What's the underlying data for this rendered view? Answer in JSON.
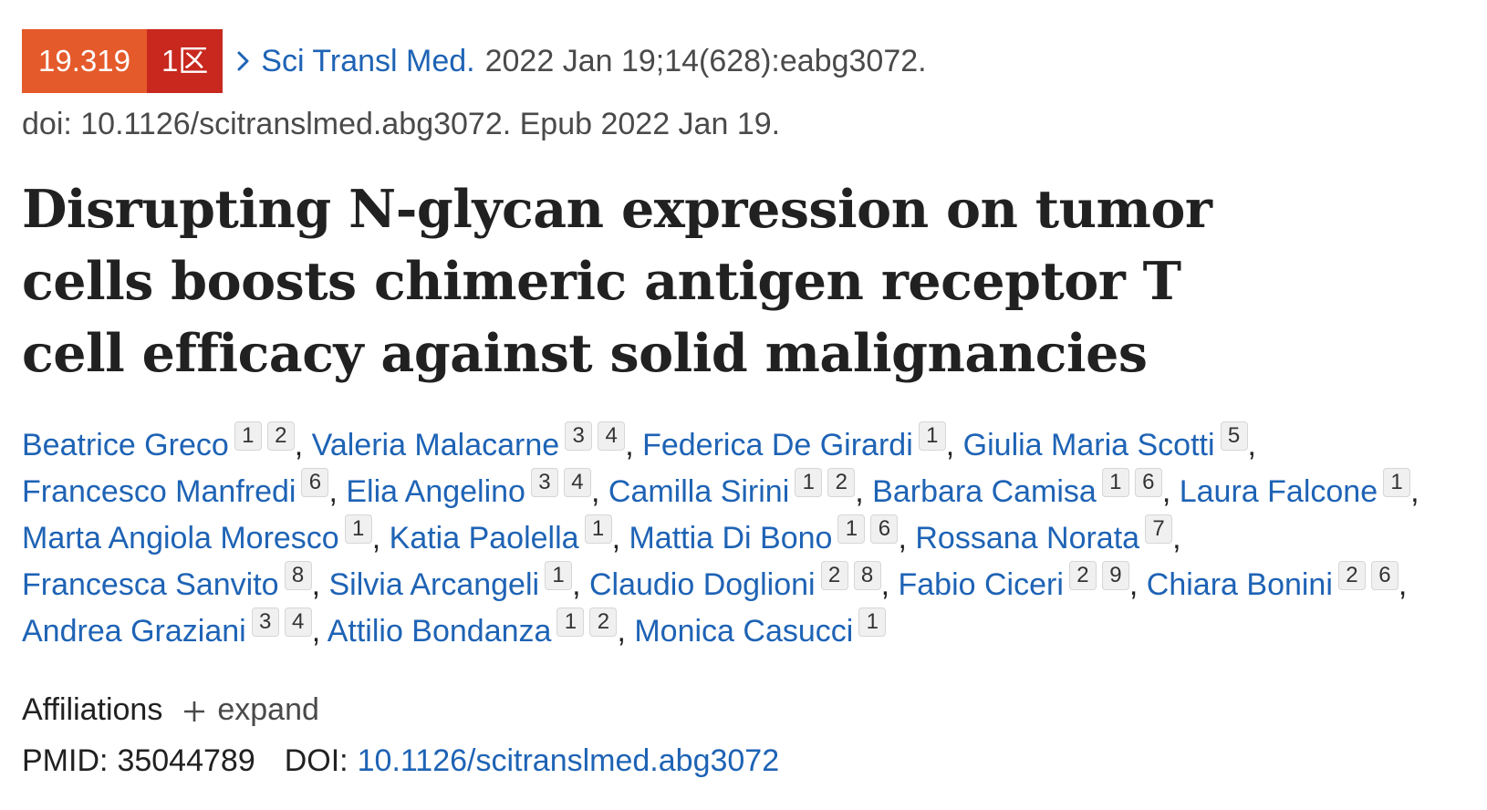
{
  "citation": {
    "impact_factor": "19.319",
    "zone": "1区",
    "journal": "Sci Transl Med.",
    "details": "2022 Jan 19;14(628):eabg3072.",
    "doi_line": "doi: 10.1126/scitranslmed.abg3072. Epub 2022 Jan 19.",
    "colors": {
      "impact_factor_bg": "#e55a2b",
      "zone_bg": "#c8281e",
      "link": "#1e63b5"
    }
  },
  "title": "Disrupting N-glycan expression on tumor cells boosts chimeric antigen receptor T cell efficacy against solid malignancies",
  "authors": [
    {
      "name": "Beatrice Greco",
      "affs": [
        "1",
        "2"
      ]
    },
    {
      "name": "Valeria Malacarne",
      "affs": [
        "3",
        "4"
      ]
    },
    {
      "name": "Federica De Girardi",
      "affs": [
        "1"
      ]
    },
    {
      "name": "Giulia Maria Scotti",
      "affs": [
        "5"
      ]
    },
    {
      "name": "Francesco Manfredi",
      "affs": [
        "6"
      ]
    },
    {
      "name": "Elia Angelino",
      "affs": [
        "3",
        "4"
      ]
    },
    {
      "name": "Camilla Sirini",
      "affs": [
        "1",
        "2"
      ]
    },
    {
      "name": "Barbara Camisa",
      "affs": [
        "1",
        "6"
      ]
    },
    {
      "name": "Laura Falcone",
      "affs": [
        "1"
      ]
    },
    {
      "name": "Marta Angiola Moresco",
      "affs": [
        "1"
      ]
    },
    {
      "name": "Katia Paolella",
      "affs": [
        "1"
      ]
    },
    {
      "name": "Mattia Di Bono",
      "affs": [
        "1",
        "6"
      ]
    },
    {
      "name": "Rossana Norata",
      "affs": [
        "7"
      ]
    },
    {
      "name": "Francesca Sanvito",
      "affs": [
        "8"
      ]
    },
    {
      "name": "Silvia Arcangeli",
      "affs": [
        "1"
      ]
    },
    {
      "name": "Claudio Doglioni",
      "affs": [
        "2",
        "8"
      ]
    },
    {
      "name": "Fabio Ciceri",
      "affs": [
        "2",
        "9"
      ]
    },
    {
      "name": "Chiara Bonini",
      "affs": [
        "2",
        "6"
      ]
    },
    {
      "name": "Andrea Graziani",
      "affs": [
        "3",
        "4"
      ]
    },
    {
      "name": "Attilio Bondanza",
      "affs": [
        "1",
        "2"
      ]
    },
    {
      "name": "Monica Casucci",
      "affs": [
        "1"
      ]
    }
  ],
  "affiliations": {
    "label": "Affiliations",
    "toggle_label": "expand"
  },
  "identifiers": {
    "pmid_label": "PMID:",
    "pmid": "35044789",
    "doi_label": "DOI:",
    "doi": "10.1126/scitranslmed.abg3072"
  }
}
